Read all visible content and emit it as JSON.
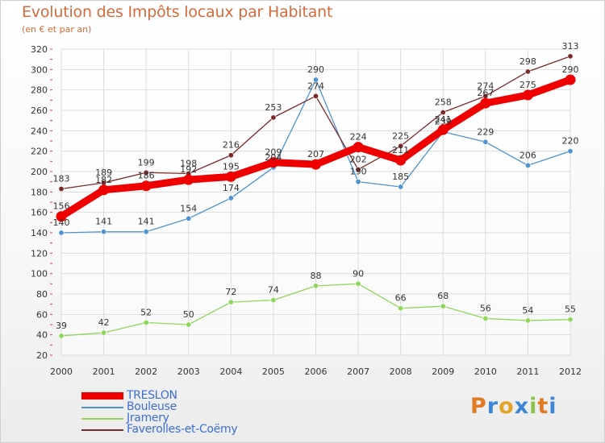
{
  "title": "Evolution des Impôts locaux par Habitant",
  "subtitle": "(en € et par an)",
  "brand": {
    "letters": [
      "P",
      "r",
      "o",
      "x",
      "i",
      "t",
      "i"
    ],
    "colors": [
      "#e07b24",
      "#3c86d6",
      "#e3a42a",
      "#3c86d6",
      "#8bc34a",
      "#e07b24",
      "#3c86d6"
    ]
  },
  "chart_data": {
    "type": "line",
    "x": [
      "2000",
      "2001",
      "2002",
      "2003",
      "2004",
      "2005",
      "2006",
      "2007",
      "2008",
      "2009",
      "2010",
      "2011",
      "2012"
    ],
    "ylim": [
      20,
      320
    ],
    "yticks": [
      "20",
      "40",
      "60",
      "80",
      "100",
      "120",
      "140",
      "160",
      "180",
      "200",
      "220",
      "240",
      "260",
      "280",
      "300",
      "320"
    ],
    "grid": true,
    "legend_position": "bottom-left",
    "series": [
      {
        "name": "TRESLON",
        "color": "#ee0000",
        "style": "thick",
        "values": [
          156,
          182,
          186,
          192,
          195,
          209,
          207,
          224,
          211,
          241,
          267,
          275,
          290
        ],
        "labels": [
          "156",
          "182",
          "186",
          "192",
          "195",
          "209",
          "207",
          "224",
          "211",
          "241",
          "267",
          "275",
          "290"
        ]
      },
      {
        "name": "Bouleuse",
        "color": "#4f93d1",
        "style": "thin",
        "values": [
          140,
          141,
          141,
          154,
          174,
          204,
          290,
          190,
          185,
          239,
          229,
          206,
          220
        ],
        "labels": [
          "140",
          "141",
          "141",
          "154",
          "174",
          "204",
          "290",
          "190",
          "185",
          "239",
          "229",
          "206",
          "220"
        ]
      },
      {
        "name": "Jramery",
        "color": "#8fd65a",
        "style": "thin",
        "values": [
          39,
          42,
          52,
          50,
          72,
          74,
          88,
          90,
          66,
          68,
          56,
          54,
          55
        ],
        "labels": [
          "39",
          "42",
          "52",
          "50",
          "72",
          "74",
          "88",
          "90",
          "66",
          "68",
          "56",
          "54",
          "55"
        ]
      },
      {
        "name": "Faverolles-et-Coëmy",
        "color": "#7a2a2a",
        "style": "thin",
        "values": [
          183,
          189,
          199,
          198,
          216,
          253,
          274,
          202,
          225,
          258,
          274,
          298,
          313
        ],
        "labels": [
          "183",
          "189",
          "199",
          "198",
          "216",
          "253",
          "274",
          "202",
          "225",
          "258",
          "274",
          "298",
          "313"
        ]
      }
    ]
  }
}
